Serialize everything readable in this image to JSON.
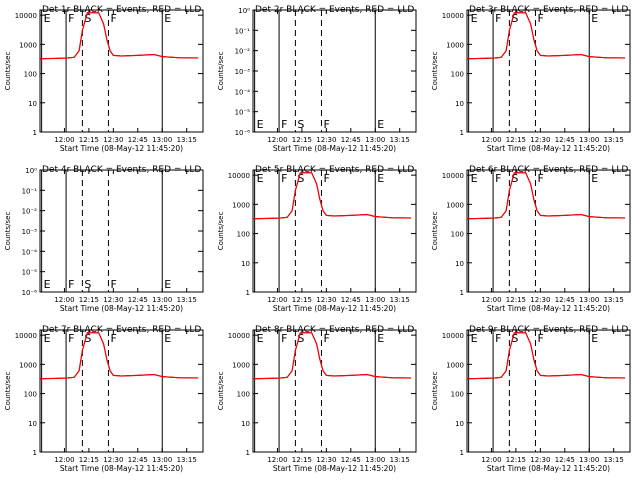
{
  "colors": {
    "events": "#000000",
    "lld": "#ff0000",
    "background": "#ffffff"
  },
  "common": {
    "ylabel": "Counts/sec",
    "xlabel": "Start Time (08-May-12 11:45:20)",
    "x_ticks": [
      "12:00",
      "12:15",
      "12:30",
      "12:45",
      "13:00",
      "13:15"
    ],
    "y_ticks_log": [
      "1",
      "10",
      "100",
      "1000",
      "10000"
    ],
    "y_ticks_small": [
      "10⁻⁶",
      "10⁻⁵",
      "10⁻⁴",
      "10⁻³",
      "10⁻²",
      "10⁻¹",
      "10⁰"
    ],
    "marker_labels": [
      "E",
      "F",
      "S",
      "F",
      "E"
    ],
    "y_scale": "log",
    "grid": false
  },
  "chart_data": [
    {
      "type": "line",
      "title": "Det 1r BLACK = Events, RED = LLD",
      "empty": false,
      "xlabel": "Start Time (08-May-12 11:45:20)",
      "ylabel": "Counts/sec",
      "ylim": [
        1,
        15000
      ],
      "xlim": [
        "11:45",
        "13:25"
      ],
      "x": [
        "11:45",
        "11:55",
        "12:02",
        "12:06",
        "12:09",
        "12:11",
        "12:14",
        "12:21",
        "12:24",
        "12:26",
        "12:28",
        "12:30",
        "12:35",
        "12:45",
        "12:55",
        "13:00",
        "13:10",
        "13:22"
      ],
      "series": [
        {
          "name": "BLACK = Events",
          "values": [
            320,
            330,
            340,
            360,
            600,
            3000,
            12000,
            12000,
            5000,
            1500,
            600,
            420,
            400,
            420,
            450,
            380,
            350,
            340
          ]
        },
        {
          "name": "RED = LLD",
          "values": [
            320,
            330,
            340,
            360,
            600,
            3000,
            12000,
            12000,
            5000,
            1500,
            600,
            420,
            400,
            420,
            450,
            380,
            350,
            340
          ]
        }
      ],
      "markers": {
        "E_start": "11:46",
        "F_start": "12:01",
        "S": "12:11",
        "F_end": "12:27",
        "E_end": "13:00"
      }
    },
    {
      "type": "line",
      "title": "Det 2r BLACK = Events, RED = LLD",
      "empty": true,
      "xlabel": "Start Time (08-May-12 11:45:20)",
      "ylabel": "Counts/sec",
      "ylim": [
        1e-06,
        1
      ],
      "xlim": [
        "11:45",
        "13:25"
      ],
      "markers": {
        "E_start": "11:46",
        "F_start": "12:01",
        "S": "12:11",
        "F_end": "12:27",
        "E_end": "13:00"
      }
    },
    {
      "type": "line",
      "title": "Det 3r BLACK = Events, RED = LLD",
      "empty": false,
      "xlabel": "Start Time (08-May-12 11:45:20)",
      "ylabel": "Counts/sec",
      "ylim": [
        1,
        15000
      ],
      "xlim": [
        "11:45",
        "13:25"
      ],
      "x": [
        "11:45",
        "11:55",
        "12:02",
        "12:06",
        "12:09",
        "12:11",
        "12:14",
        "12:21",
        "12:24",
        "12:26",
        "12:28",
        "12:30",
        "12:35",
        "12:45",
        "12:55",
        "13:00",
        "13:10",
        "13:22"
      ],
      "series": [
        {
          "name": "BLACK = Events",
          "values": [
            320,
            330,
            340,
            360,
            600,
            3000,
            12000,
            12000,
            5000,
            1500,
            600,
            420,
            400,
            420,
            450,
            380,
            350,
            340
          ]
        },
        {
          "name": "RED = LLD",
          "values": [
            320,
            330,
            340,
            360,
            600,
            3000,
            12000,
            12000,
            5000,
            1500,
            600,
            420,
            400,
            420,
            450,
            380,
            350,
            340
          ]
        }
      ],
      "markers": {
        "E_start": "11:46",
        "F_start": "12:01",
        "S": "12:11",
        "F_end": "12:27",
        "E_end": "13:00"
      }
    },
    {
      "type": "line",
      "title": "Det 4r BLACK = Events, RED = LLD",
      "empty": true,
      "xlabel": "Start Time (08-May-12 11:45:20)",
      "ylabel": "Counts/sec",
      "ylim": [
        1e-06,
        1
      ],
      "xlim": [
        "11:45",
        "13:25"
      ],
      "markers": {
        "E_start": "11:46",
        "F_start": "12:01",
        "S": "12:11",
        "F_end": "12:27",
        "E_end": "13:00"
      }
    },
    {
      "type": "line",
      "title": "Det 5r BLACK = Events, RED = LLD",
      "empty": false,
      "xlabel": "Start Time (08-May-12 11:45:20)",
      "ylabel": "Counts/sec",
      "ylim": [
        1,
        15000
      ],
      "xlim": [
        "11:45",
        "13:25"
      ],
      "x": [
        "11:45",
        "11:55",
        "12:02",
        "12:06",
        "12:09",
        "12:11",
        "12:14",
        "12:21",
        "12:24",
        "12:26",
        "12:28",
        "12:30",
        "12:35",
        "12:45",
        "12:55",
        "13:00",
        "13:10",
        "13:22"
      ],
      "series": [
        {
          "name": "BLACK = Events",
          "values": [
            320,
            330,
            340,
            360,
            600,
            3000,
            12000,
            12000,
            5000,
            1500,
            600,
            420,
            400,
            420,
            450,
            380,
            350,
            340
          ]
        },
        {
          "name": "RED = LLD",
          "values": [
            320,
            330,
            340,
            360,
            600,
            3000,
            12000,
            12000,
            5000,
            1500,
            600,
            420,
            400,
            420,
            450,
            380,
            350,
            340
          ]
        }
      ],
      "markers": {
        "E_start": "11:46",
        "F_start": "12:01",
        "S": "12:11",
        "F_end": "12:27",
        "E_end": "13:00"
      }
    },
    {
      "type": "line",
      "title": "Det 6r BLACK = Events, RED = LLD",
      "empty": false,
      "xlabel": "Start Time (08-May-12 11:45:20)",
      "ylabel": "Counts/sec",
      "ylim": [
        1,
        15000
      ],
      "xlim": [
        "11:45",
        "13:25"
      ],
      "x": [
        "11:45",
        "11:55",
        "12:02",
        "12:06",
        "12:09",
        "12:11",
        "12:14",
        "12:21",
        "12:24",
        "12:26",
        "12:28",
        "12:30",
        "12:35",
        "12:45",
        "12:55",
        "13:00",
        "13:10",
        "13:22"
      ],
      "series": [
        {
          "name": "BLACK = Events",
          "values": [
            320,
            330,
            340,
            360,
            600,
            3000,
            12000,
            12000,
            5000,
            1500,
            600,
            420,
            400,
            420,
            450,
            380,
            350,
            340
          ]
        },
        {
          "name": "RED = LLD",
          "values": [
            320,
            330,
            340,
            360,
            600,
            3000,
            12000,
            12000,
            5000,
            1500,
            600,
            420,
            400,
            420,
            450,
            380,
            350,
            340
          ]
        }
      ],
      "markers": {
        "E_start": "11:46",
        "F_start": "12:01",
        "S": "12:11",
        "F_end": "12:27",
        "E_end": "13:00"
      }
    },
    {
      "type": "line",
      "title": "Det 7r BLACK = Events, RED = LLD",
      "empty": false,
      "xlabel": "Start Time (08-May-12 11:45:20)",
      "ylabel": "Counts/sec",
      "ylim": [
        1,
        15000
      ],
      "xlim": [
        "11:45",
        "13:25"
      ],
      "x": [
        "11:45",
        "11:55",
        "12:02",
        "12:06",
        "12:09",
        "12:11",
        "12:14",
        "12:21",
        "12:24",
        "12:26",
        "12:28",
        "12:30",
        "12:35",
        "12:45",
        "12:55",
        "13:00",
        "13:10",
        "13:22"
      ],
      "series": [
        {
          "name": "BLACK = Events",
          "values": [
            320,
            330,
            340,
            360,
            600,
            3000,
            12000,
            12000,
            5000,
            1500,
            600,
            420,
            400,
            420,
            450,
            380,
            350,
            340
          ]
        },
        {
          "name": "RED = LLD",
          "values": [
            320,
            330,
            340,
            360,
            600,
            3000,
            12000,
            12000,
            5000,
            1500,
            600,
            420,
            400,
            420,
            450,
            380,
            350,
            340
          ]
        }
      ],
      "markers": {
        "E_start": "11:46",
        "F_start": "12:01",
        "S": "12:11",
        "F_end": "12:27",
        "E_end": "13:00"
      }
    },
    {
      "type": "line",
      "title": "Det 8r BLACK = Events, RED = LLD",
      "empty": false,
      "xlabel": "Start Time (08-May-12 11:45:20)",
      "ylabel": "Counts/sec",
      "ylim": [
        1,
        15000
      ],
      "xlim": [
        "11:45",
        "13:25"
      ],
      "x": [
        "11:45",
        "11:55",
        "12:02",
        "12:06",
        "12:09",
        "12:11",
        "12:14",
        "12:21",
        "12:24",
        "12:26",
        "12:28",
        "12:30",
        "12:35",
        "12:45",
        "12:55",
        "13:00",
        "13:10",
        "13:22"
      ],
      "series": [
        {
          "name": "BLACK = Events",
          "values": [
            320,
            330,
            340,
            360,
            600,
            3000,
            12000,
            12000,
            5000,
            1500,
            600,
            420,
            400,
            420,
            450,
            380,
            350,
            340
          ]
        },
        {
          "name": "RED = LLD",
          "values": [
            320,
            330,
            340,
            360,
            600,
            3000,
            12000,
            12000,
            5000,
            1500,
            600,
            420,
            400,
            420,
            450,
            380,
            350,
            340
          ]
        }
      ],
      "markers": {
        "E_start": "11:46",
        "F_start": "12:01",
        "S": "12:11",
        "F_end": "12:27",
        "E_end": "13:00"
      }
    },
    {
      "type": "line",
      "title": "Det 9r BLACK = Events, RED = LLD",
      "empty": false,
      "xlabel": "Start Time (08-May-12 11:45:20)",
      "ylabel": "Counts/sec",
      "ylim": [
        1,
        15000
      ],
      "xlim": [
        "11:45",
        "13:25"
      ],
      "x": [
        "11:45",
        "11:55",
        "12:02",
        "12:06",
        "12:09",
        "12:11",
        "12:14",
        "12:21",
        "12:24",
        "12:26",
        "12:28",
        "12:30",
        "12:35",
        "12:45",
        "12:55",
        "13:00",
        "13:10",
        "13:22"
      ],
      "series": [
        {
          "name": "BLACK = Events",
          "values": [
            320,
            330,
            340,
            360,
            600,
            3000,
            12000,
            12000,
            5000,
            1500,
            600,
            420,
            400,
            420,
            450,
            380,
            350,
            340
          ]
        },
        {
          "name": "RED = LLD",
          "values": [
            320,
            330,
            340,
            360,
            600,
            3000,
            12000,
            12000,
            5000,
            1500,
            600,
            420,
            400,
            420,
            450,
            380,
            350,
            340
          ]
        }
      ],
      "markers": {
        "E_start": "11:46",
        "F_start": "12:01",
        "S": "12:11",
        "F_end": "12:27",
        "E_end": "13:00"
      }
    }
  ]
}
